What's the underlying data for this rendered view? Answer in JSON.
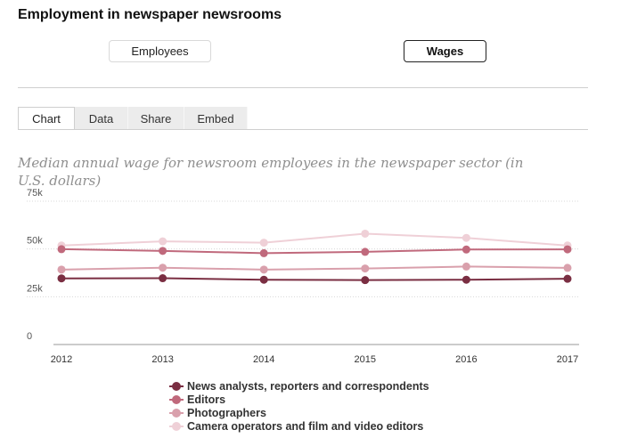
{
  "header": {
    "title": "Employment in newspaper newsrooms"
  },
  "toggle": {
    "employees_label": "Employees",
    "wages_label": "Wages",
    "selected": "Wages"
  },
  "tabs": [
    {
      "label": "Chart",
      "active": true
    },
    {
      "label": "Data",
      "active": false
    },
    {
      "label": "Share",
      "active": false
    },
    {
      "label": "Embed",
      "active": false
    }
  ],
  "chart_data": {
    "type": "line",
    "title": "Median annual wage for newsroom employees in the newspaper sector (in U.S. dollars)",
    "x": [
      2012,
      2013,
      2014,
      2015,
      2016,
      2017
    ],
    "x_tick_labels": [
      "2012",
      "2013",
      "2014",
      "2015",
      "2016",
      "2017"
    ],
    "ylim": [
      0,
      75000
    ],
    "y_ticks": [
      0,
      25000,
      50000,
      75000
    ],
    "y_tick_labels": [
      "0",
      "25k",
      "50k",
      "75k"
    ],
    "grid": true,
    "legend_position": "bottom",
    "series": [
      {
        "name": "News analysts, reporters and correspondents",
        "color": "#7a2e42",
        "values": [
          34600,
          34700,
          33900,
          33700,
          33900,
          34400
        ]
      },
      {
        "name": "Editors",
        "color": "#c0697c",
        "values": [
          49900,
          49000,
          47800,
          48500,
          49700,
          49800
        ]
      },
      {
        "name": "Photographers",
        "color": "#d9a0ac",
        "values": [
          39200,
          40200,
          39200,
          39800,
          40800,
          40100
        ]
      },
      {
        "name": "Camera operators and film and video editors",
        "color": "#efd0d7",
        "values": [
          51800,
          54000,
          53300,
          58000,
          55800,
          51800
        ]
      }
    ]
  }
}
